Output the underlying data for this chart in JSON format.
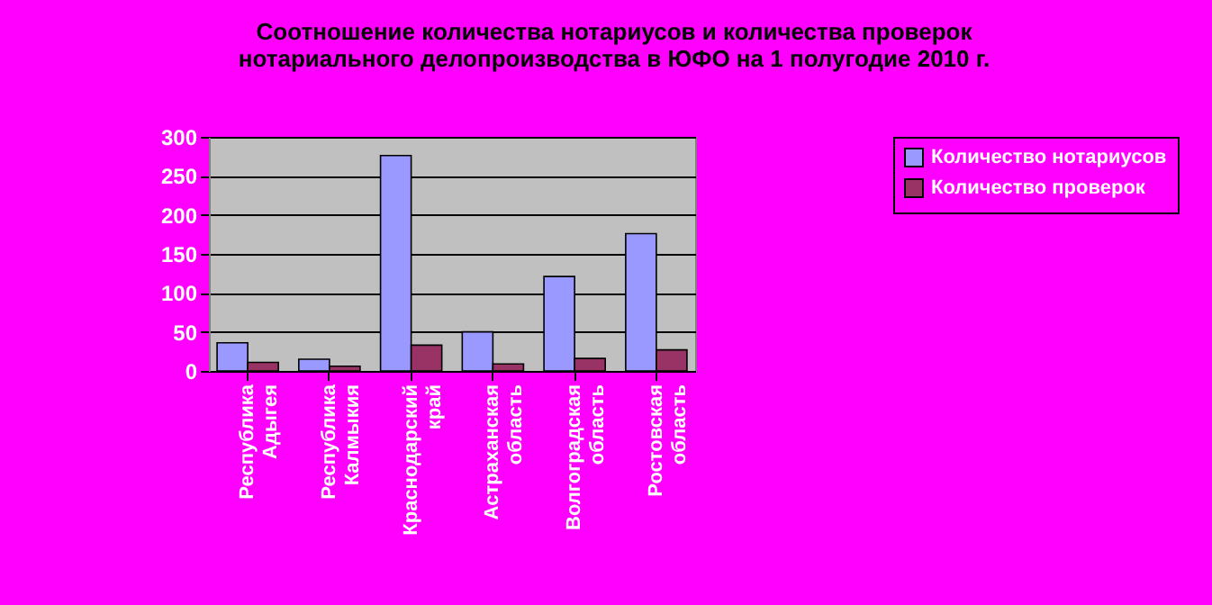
{
  "chart_data": {
    "type": "bar",
    "title": "Соотношение количества нотариусов и количества проверок\nнотариального делопроизводства в ЮФО на 1 полугодие 2010 г.",
    "categories": [
      "Республика Адыгея",
      "Республика Калмыкия",
      "Краснодарский край",
      "Астраханская область",
      "Волгоградская область",
      "Ростовская область"
    ],
    "series": [
      {
        "name": "Количество нотариусов",
        "color": "#9999ff",
        "values": [
          36,
          15,
          276,
          50,
          121,
          176
        ]
      },
      {
        "name": "Количество проверок",
        "color": "#993366",
        "values": [
          11,
          6,
          33,
          9,
          16,
          27
        ]
      }
    ],
    "ylim": [
      0,
      300
    ],
    "yticks": [
      0,
      50,
      100,
      150,
      200,
      250,
      300
    ],
    "grid": "y",
    "legend": "right"
  }
}
